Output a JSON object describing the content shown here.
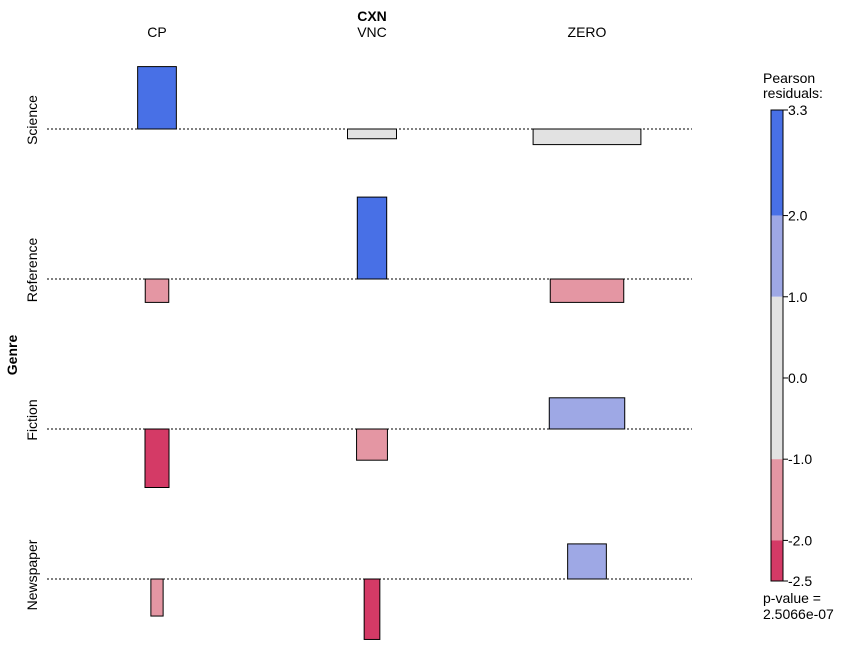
{
  "chart_data": {
    "type": "association",
    "x_variable": "CXN",
    "y_variable": "Genre",
    "columns": [
      "CP",
      "VNC",
      "ZERO"
    ],
    "rows": [
      "Science",
      "Reference",
      "Fiction",
      "Newspaper"
    ],
    "cells": [
      {
        "row": "Science",
        "col": "CP",
        "residual": 3.2,
        "width": 0.79
      },
      {
        "row": "Science",
        "col": "VNC",
        "residual": -0.5,
        "width": 1.0
      },
      {
        "row": "Science",
        "col": "ZERO",
        "residual": -0.8,
        "width": 2.2
      },
      {
        "row": "Reference",
        "col": "CP",
        "residual": -1.2,
        "width": 0.48
      },
      {
        "row": "Reference",
        "col": "VNC",
        "residual": 4.2,
        "width": 0.6
      },
      {
        "row": "Reference",
        "col": "ZERO",
        "residual": -1.2,
        "width": 1.5
      },
      {
        "row": "Fiction",
        "col": "CP",
        "residual": -3.0,
        "width": 0.49
      },
      {
        "row": "Fiction",
        "col": "VNC",
        "residual": -1.6,
        "width": 0.63
      },
      {
        "row": "Fiction",
        "col": "ZERO",
        "residual": 1.6,
        "width": 1.54
      },
      {
        "row": "Newspaper",
        "col": "CP",
        "residual": -1.9,
        "width": 0.25
      },
      {
        "row": "Newspaper",
        "col": "VNC",
        "residual": -3.1,
        "width": 0.32
      },
      {
        "row": "Newspaper",
        "col": "ZERO",
        "residual": 1.8,
        "width": 0.79
      }
    ],
    "legend": {
      "title": "Pearson\nresiduals:",
      "ticks": [
        "3.3",
        "2.0",
        "1.0",
        "0.0",
        "-1.0",
        "-2.0",
        "-2.5"
      ],
      "tick_values": [
        3.3,
        2.0,
        1.0,
        0.0,
        -1.0,
        -2.0,
        -2.5
      ],
      "range": [
        -2.5,
        3.3
      ],
      "segments": [
        {
          "from": 2.0,
          "to": 3.3,
          "color": "#4870e6"
        },
        {
          "from": 1.0,
          "to": 2.0,
          "color": "#9ea8e5"
        },
        {
          "from": -1.0,
          "to": 1.0,
          "color": "#e2e2e2"
        },
        {
          "from": -2.0,
          "to": -1.0,
          "color": "#e496a3"
        },
        {
          "from": -2.5,
          "to": -2.0,
          "color": "#d43a66"
        }
      ],
      "pvalue_label": "p-value =",
      "pvalue": "2.5066e-07"
    }
  }
}
